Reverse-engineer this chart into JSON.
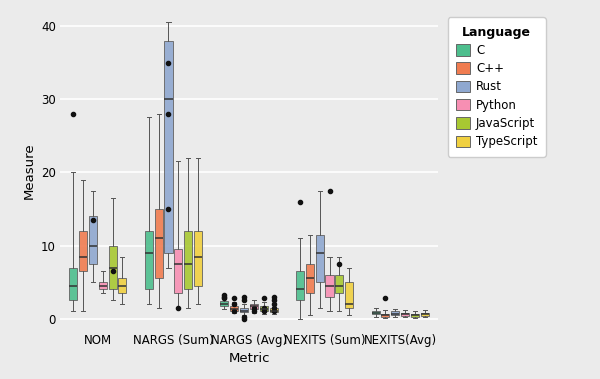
{
  "metrics": [
    "NOM",
    "NARGS (Sum)",
    "NARGS (Avg)",
    "NEXITS (Sum)",
    "NEXITS(Avg)"
  ],
  "languages": [
    "C",
    "C++",
    "Rust",
    "Python",
    "JavaScript",
    "TypeScript"
  ],
  "colors": {
    "C": "#4dbe8d",
    "C++": "#f07c50",
    "Rust": "#8fa8d0",
    "Python": "#f78fb3",
    "JavaScript": "#a8c832",
    "TypeScript": "#f0d040"
  },
  "box_data": {
    "NOM": {
      "C": {
        "whislo": 1.0,
        "q1": 2.5,
        "med": 4.5,
        "q3": 7.0,
        "whishi": 20.0,
        "fliers": [
          28.0
        ]
      },
      "C++": {
        "whislo": 1.0,
        "q1": 6.5,
        "med": 8.5,
        "q3": 12.0,
        "whishi": 19.0,
        "fliers": []
      },
      "Rust": {
        "whislo": 5.0,
        "q1": 7.5,
        "med": 10.0,
        "q3": 14.0,
        "whishi": 17.5,
        "fliers": [
          13.5
        ]
      },
      "Python": {
        "whislo": 3.5,
        "q1": 4.0,
        "med": 4.5,
        "q3": 5.0,
        "whishi": 6.5,
        "fliers": []
      },
      "JavaScript": {
        "whislo": 2.5,
        "q1": 4.0,
        "med": 7.0,
        "q3": 10.0,
        "whishi": 16.5,
        "fliers": [
          6.5
        ]
      },
      "TypeScript": {
        "whislo": 2.0,
        "q1": 3.5,
        "med": 4.5,
        "q3": 5.5,
        "whishi": 8.5,
        "fliers": []
      }
    },
    "NARGS (Sum)": {
      "C": {
        "whislo": 2.0,
        "q1": 4.0,
        "med": 9.0,
        "q3": 12.0,
        "whishi": 27.5,
        "fliers": []
      },
      "C++": {
        "whislo": 1.5,
        "q1": 5.5,
        "med": 11.0,
        "q3": 15.0,
        "whishi": 28.0,
        "fliers": []
      },
      "Rust": {
        "whislo": 7.0,
        "q1": 9.0,
        "med": 30.0,
        "q3": 38.0,
        "whishi": 40.5,
        "fliers": [
          35.0,
          28.0,
          15.0
        ]
      },
      "Python": {
        "whislo": 1.5,
        "q1": 3.5,
        "med": 7.5,
        "q3": 9.5,
        "whishi": 21.5,
        "fliers": [
          1.5
        ]
      },
      "JavaScript": {
        "whislo": 1.5,
        "q1": 4.0,
        "med": 7.5,
        "q3": 12.0,
        "whishi": 22.0,
        "fliers": []
      },
      "TypeScript": {
        "whislo": 2.0,
        "q1": 4.5,
        "med": 8.5,
        "q3": 12.0,
        "whishi": 22.0,
        "fliers": []
      }
    },
    "NARGS (Avg)": {
      "C": {
        "whislo": 1.3,
        "q1": 1.7,
        "med": 2.0,
        "q3": 2.4,
        "whishi": 2.8,
        "fliers": [
          2.8,
          3.0,
          3.2
        ]
      },
      "C++": {
        "whislo": 0.8,
        "q1": 1.0,
        "med": 1.3,
        "q3": 1.8,
        "whishi": 2.3,
        "fliers": [
          1.0,
          2.0,
          2.8
        ]
      },
      "Rust": {
        "whislo": 0.5,
        "q1": 0.9,
        "med": 1.1,
        "q3": 1.5,
        "whishi": 2.0,
        "fliers": [
          0.0,
          0.2,
          2.5,
          3.0
        ]
      },
      "Python": {
        "whislo": 0.8,
        "q1": 1.3,
        "med": 1.7,
        "q3": 2.0,
        "whishi": 2.5,
        "fliers": [
          1.0,
          1.5
        ]
      },
      "JavaScript": {
        "whislo": 0.6,
        "q1": 1.0,
        "med": 1.3,
        "q3": 1.8,
        "whishi": 2.3,
        "fliers": [
          1.0,
          1.2,
          1.5,
          2.8
        ]
      },
      "TypeScript": {
        "whislo": 0.6,
        "q1": 0.9,
        "med": 1.1,
        "q3": 1.5,
        "whishi": 2.0,
        "fliers": [
          1.0,
          1.5,
          2.0,
          2.5,
          3.0
        ]
      }
    },
    "NEXITS (Sum)": {
      "C": {
        "whislo": 0.0,
        "q1": 2.5,
        "med": 4.0,
        "q3": 6.5,
        "whishi": 11.0,
        "fliers": [
          16.0
        ]
      },
      "C++": {
        "whislo": 0.5,
        "q1": 3.5,
        "med": 5.5,
        "q3": 7.5,
        "whishi": 11.5,
        "fliers": []
      },
      "Rust": {
        "whislo": 1.5,
        "q1": 5.0,
        "med": 9.0,
        "q3": 11.5,
        "whishi": 17.5,
        "fliers": []
      },
      "Python": {
        "whislo": 1.0,
        "q1": 3.0,
        "med": 4.5,
        "q3": 6.0,
        "whishi": 8.5,
        "fliers": [
          17.5
        ]
      },
      "JavaScript": {
        "whislo": 1.0,
        "q1": 3.5,
        "med": 4.5,
        "q3": 6.0,
        "whishi": 8.5,
        "fliers": [
          7.5
        ]
      },
      "TypeScript": {
        "whislo": 0.5,
        "q1": 1.5,
        "med": 2.0,
        "q3": 5.0,
        "whishi": 7.0,
        "fliers": []
      }
    },
    "NEXITS(Avg)": {
      "C": {
        "whislo": 0.3,
        "q1": 0.6,
        "med": 0.8,
        "q3": 1.0,
        "whishi": 1.5,
        "fliers": []
      },
      "C++": {
        "whislo": 0.1,
        "q1": 0.3,
        "med": 0.5,
        "q3": 0.7,
        "whishi": 1.2,
        "fliers": [
          2.8
        ]
      },
      "Rust": {
        "whislo": 0.2,
        "q1": 0.5,
        "med": 0.7,
        "q3": 1.0,
        "whishi": 1.4,
        "fliers": []
      },
      "Python": {
        "whislo": 0.2,
        "q1": 0.4,
        "med": 0.6,
        "q3": 0.8,
        "whishi": 1.2,
        "fliers": []
      },
      "JavaScript": {
        "whislo": 0.1,
        "q1": 0.3,
        "med": 0.5,
        "q3": 0.7,
        "whishi": 1.1,
        "fliers": []
      },
      "TypeScript": {
        "whislo": 0.2,
        "q1": 0.4,
        "med": 0.6,
        "q3": 0.8,
        "whishi": 1.2,
        "fliers": []
      }
    }
  },
  "xlabel": "Metric",
  "ylabel": "Measure",
  "ylim": [
    -1.5,
    42
  ],
  "yticks": [
    0,
    10,
    20,
    30,
    40
  ],
  "bg_color": "#ebebeb",
  "plot_bg_color": "#ebebeb",
  "legend_bg_color": "#ffffff",
  "grid_color": "#ffffff"
}
